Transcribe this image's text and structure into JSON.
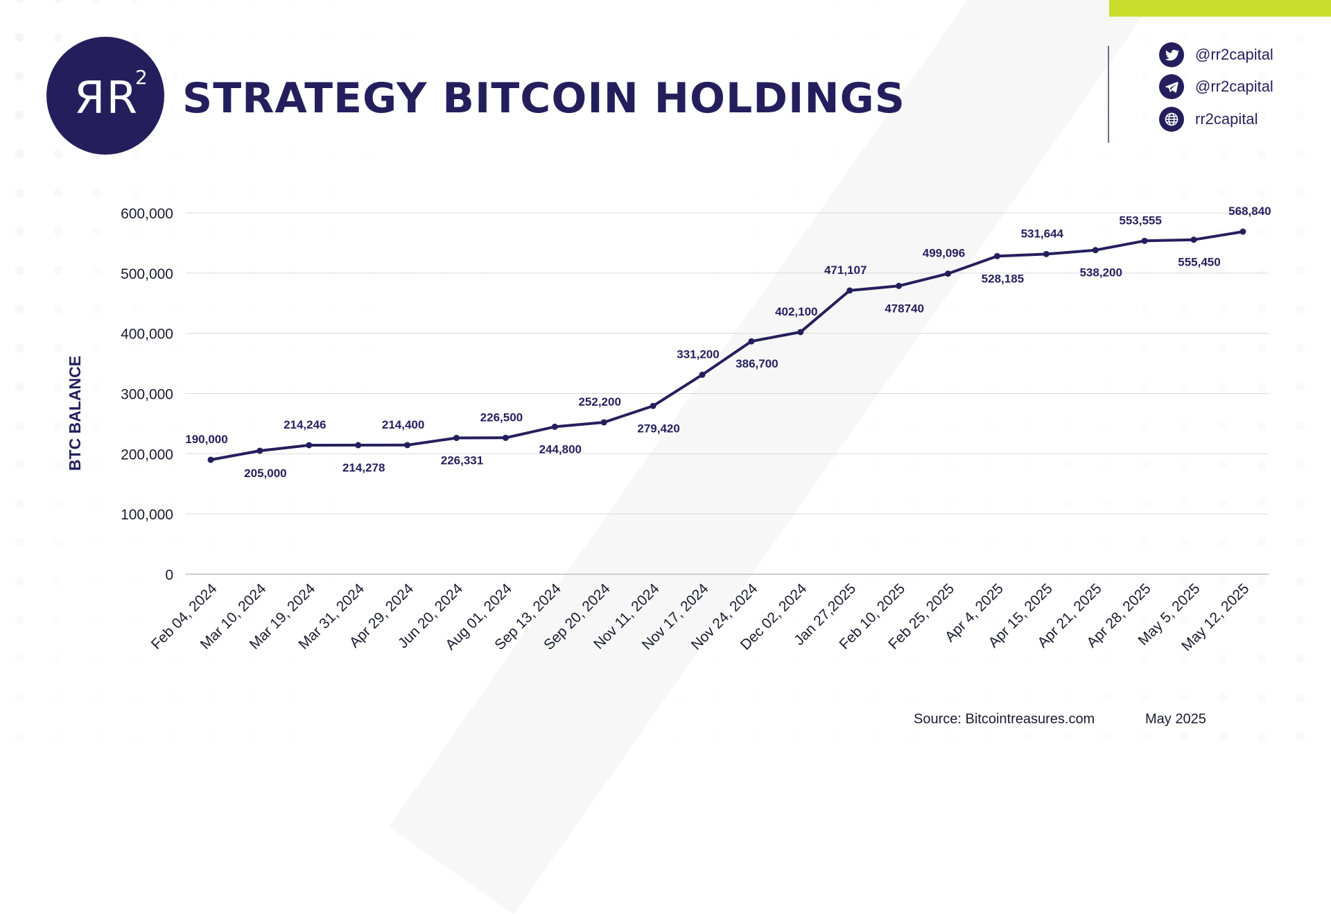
{
  "header": {
    "logo_text": "ЯR",
    "logo_sup": "2",
    "title": "STRATEGY BITCOIN HOLDINGS"
  },
  "social": [
    {
      "icon": "twitter-icon",
      "handle": "@rr2capital"
    },
    {
      "icon": "telegram-icon",
      "handle": "@rr2capital"
    },
    {
      "icon": "globe-icon",
      "handle": "rr2capital"
    }
  ],
  "colors": {
    "brand": "#241f5c",
    "accent": "#c8dc2b",
    "grid": "#d9d9d9"
  },
  "footer": {
    "source": "Source: Bitcointreasures.com",
    "date": "May 2025"
  },
  "chart_data": {
    "type": "line",
    "title": "STRATEGY BITCOIN HOLDINGS",
    "xlabel": "",
    "ylabel": "BTC BALANCE",
    "ylim": [
      0,
      600000
    ],
    "yticks": [
      0,
      100000,
      200000,
      300000,
      400000,
      500000,
      600000
    ],
    "ytick_labels": [
      "0",
      "100,000",
      "200,000",
      "300,000",
      "400,000",
      "500,000",
      "600,000"
    ],
    "grid": true,
    "categories": [
      "Feb 04, 2024",
      "Mar 10, 2024",
      "Mar 19, 2024",
      "Mar 31, 2024",
      "Apr 29, 2024",
      "Jun 20, 2024",
      "Aug 01, 2024",
      "Sep 13, 2024",
      "Sep 20, 2024",
      "Nov 11, 2024",
      "Nov 17, 2024",
      "Nov 24, 2024",
      "Dec 02, 2024",
      "Jan 27,2025",
      "Feb 10, 2025",
      "Feb 25, 2025",
      "Apr 4, 2025",
      "Apr 15, 2025",
      "Apr 21, 2025",
      "Apr 28, 2025",
      "May 5, 2025",
      "May 12, 2025"
    ],
    "values": [
      190000,
      205000,
      214246,
      214278,
      214400,
      226331,
      226500,
      244800,
      252200,
      279420,
      331200,
      386700,
      402100,
      471107,
      478740,
      499096,
      528185,
      531644,
      538200,
      553555,
      555450,
      568840
    ],
    "data_labels": [
      "190,000",
      "205,000",
      "214,246",
      "214,278",
      "214,400",
      "226,331",
      "226,500",
      "244,800",
      "252,200",
      "279,420",
      "331,200",
      "386,700",
      "402,100",
      "471,107",
      "478740",
      "499,096",
      "528,185",
      "531,644",
      "538,200",
      "553,555",
      "555,450",
      "568,840"
    ],
    "label_positions": [
      "above",
      "below",
      "above",
      "below",
      "above",
      "below",
      "above",
      "below",
      "above",
      "below",
      "above",
      "below",
      "above",
      "above",
      "below",
      "above",
      "below",
      "above",
      "below",
      "above",
      "below",
      "above"
    ]
  }
}
